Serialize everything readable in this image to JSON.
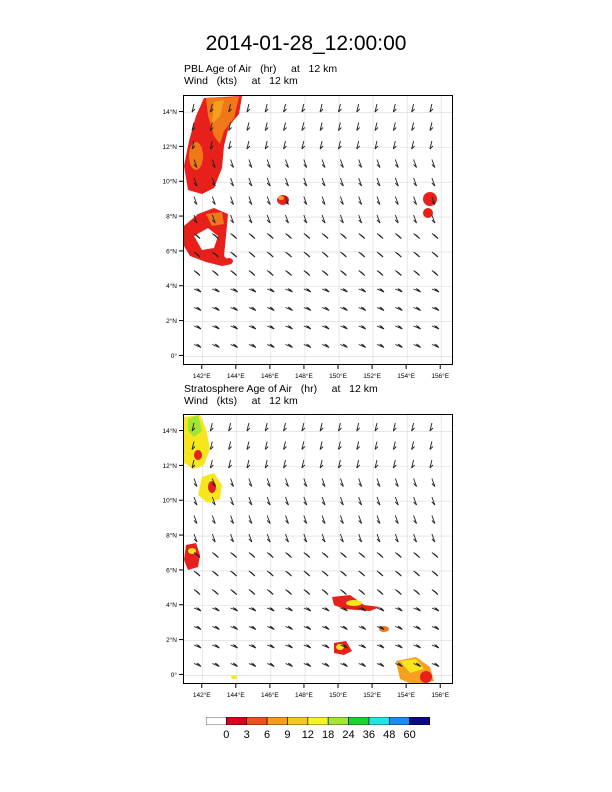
{
  "title": "2014-01-28_12:00:00",
  "panels": [
    {
      "field_label": "PBL Age of Air   (hr)     at   12 km",
      "wind_label": "Wind   (kts)     at   12 km",
      "lat_ticks": [
        "14°N",
        "12°N",
        "10°N",
        "8°N",
        "6°N",
        "4°N",
        "2°N",
        "0°"
      ],
      "lon_ticks": [
        "142°E",
        "144°E",
        "146°E",
        "148°E",
        "150°E",
        "152°E",
        "154°E",
        "156°E"
      ]
    },
    {
      "field_label": "Stratosphere Age of Air   (hr)     at   12 km",
      "wind_label": "Wind   (kts)     at   12 km",
      "lat_ticks": [
        "14°N",
        "12°N",
        "10°N",
        "8°N",
        "6°N",
        "4°N",
        "2°N",
        "0°"
      ],
      "lon_ticks": [
        "142°E",
        "144°E",
        "146°E",
        "148°E",
        "150°E",
        "152°E",
        "154°E",
        "156°E"
      ]
    }
  ],
  "colorbar": {
    "labels": [
      "0",
      "3",
      "6",
      "9",
      "12",
      "18",
      "24",
      "36",
      "48",
      "60"
    ],
    "colors": [
      "#ffffff",
      "#d8001e",
      "#f0501e",
      "#f59b1e",
      "#f5c81e",
      "#f5f51e",
      "#a0e632",
      "#1ed232",
      "#1ee6e6",
      "#1e8cf0",
      "#0a0a82"
    ]
  },
  "colors": {
    "red": "#e8201c",
    "orange": "#f07818",
    "light_orange": "#f5a01e",
    "yellow": "#f5e61e",
    "green": "#a0e632"
  }
}
